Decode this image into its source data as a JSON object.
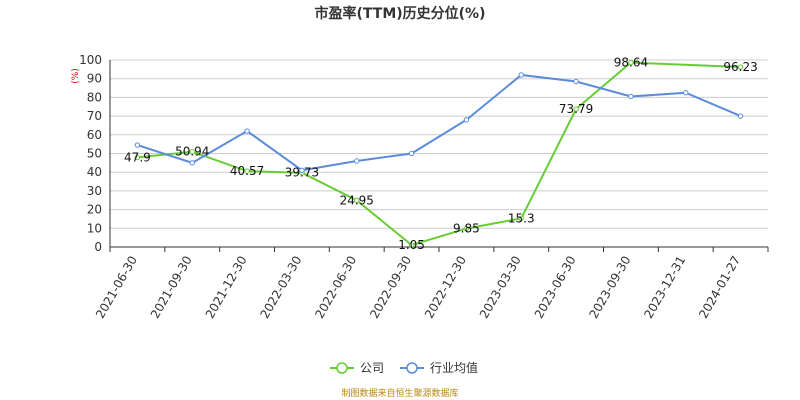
{
  "chart_data": {
    "type": "line",
    "title": "市盈率(TTM)历史分位(%)",
    "y_unit": "(%)",
    "ylim": [
      0,
      100
    ],
    "ytick_step": 10,
    "grid": true,
    "legend_position": "bottom",
    "categories": [
      "2021-06-30",
      "2021-09-30",
      "2021-12-30",
      "2022-03-30",
      "2022-06-30",
      "2022-09-30",
      "2022-12-30",
      "2023-03-30",
      "2023-06-30",
      "2023-09-30",
      "2023-12-31",
      "2024-01-27"
    ],
    "series": [
      {
        "name": "公司",
        "color": "#66cc33",
        "values": [
          47.9,
          50.94,
          40.57,
          39.73,
          24.95,
          1.05,
          9.85,
          15.3,
          73.79,
          98.64,
          null,
          96.23
        ],
        "labels": [
          "47.9",
          "50.94",
          "40.57",
          "39.73",
          "24.95",
          "1.05",
          "9.85",
          "15.3",
          "73.79",
          "98.64",
          null,
          "96.23"
        ]
      },
      {
        "name": "行业均值",
        "color": "#5b8bdb",
        "values": [
          54.5,
          45,
          62,
          41,
          46,
          50,
          68,
          92,
          88.5,
          80.5,
          82.5,
          70
        ],
        "labels": null
      }
    ]
  },
  "source_text": "制图数据来自恒生聚源数据库"
}
